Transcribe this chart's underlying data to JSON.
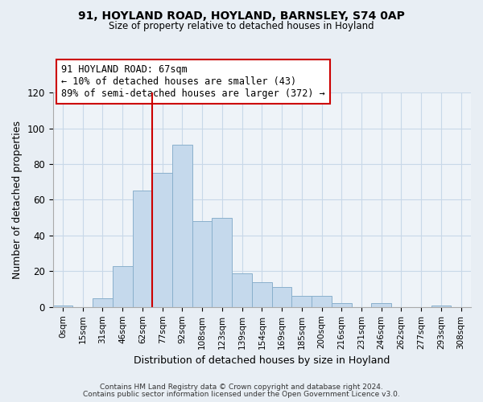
{
  "title1": "91, HOYLAND ROAD, HOYLAND, BARNSLEY, S74 0AP",
  "title2": "Size of property relative to detached houses in Hoyland",
  "xlabel": "Distribution of detached houses by size in Hoyland",
  "ylabel": "Number of detached properties",
  "bar_labels": [
    "0sqm",
    "15sqm",
    "31sqm",
    "46sqm",
    "62sqm",
    "77sqm",
    "92sqm",
    "108sqm",
    "123sqm",
    "139sqm",
    "154sqm",
    "169sqm",
    "185sqm",
    "200sqm",
    "216sqm",
    "231sqm",
    "246sqm",
    "262sqm",
    "277sqm",
    "293sqm",
    "308sqm"
  ],
  "bar_heights": [
    1,
    0,
    5,
    23,
    65,
    75,
    91,
    48,
    50,
    19,
    14,
    11,
    6,
    6,
    2,
    0,
    2,
    0,
    0,
    1,
    0
  ],
  "bar_color": "#c5d9ec",
  "bar_edgecolor": "#8ab0cc",
  "property_line_x": 4.5,
  "annotation_line1": "91 HOYLAND ROAD: 67sqm",
  "annotation_line2": "← 10% of detached houses are smaller (43)",
  "annotation_line3": "89% of semi-detached houses are larger (372) →",
  "vline_color": "#cc0000",
  "ylim": [
    0,
    120
  ],
  "yticks": [
    0,
    20,
    40,
    60,
    80,
    100,
    120
  ],
  "footnote1": "Contains HM Land Registry data © Crown copyright and database right 2024.",
  "footnote2": "Contains public sector information licensed under the Open Government Licence v3.0.",
  "bg_color": "#e8eef4",
  "plot_bg_color": "#eef3f8",
  "grid_color": "#c8d8e8"
}
